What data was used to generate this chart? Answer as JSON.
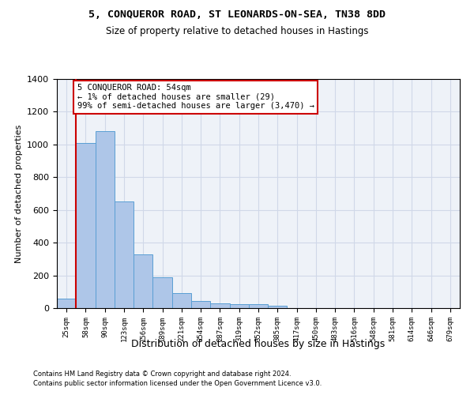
{
  "title1": "5, CONQUEROR ROAD, ST LEONARDS-ON-SEA, TN38 8DD",
  "title2": "Size of property relative to detached houses in Hastings",
  "xlabel": "Distribution of detached houses by size in Hastings",
  "ylabel": "Number of detached properties",
  "categories": [
    "25sqm",
    "58sqm",
    "90sqm",
    "123sqm",
    "156sqm",
    "189sqm",
    "221sqm",
    "254sqm",
    "287sqm",
    "319sqm",
    "352sqm",
    "385sqm",
    "417sqm",
    "450sqm",
    "483sqm",
    "516sqm",
    "548sqm",
    "581sqm",
    "614sqm",
    "646sqm",
    "679sqm"
  ],
  "values": [
    58,
    1010,
    1080,
    650,
    330,
    190,
    90,
    45,
    30,
    25,
    25,
    15,
    0,
    0,
    0,
    0,
    0,
    0,
    0,
    0,
    0
  ],
  "bar_color": "#aec6e8",
  "bar_edge_color": "#5a9fd4",
  "vline_color": "#cc0000",
  "annotation_box_text": "5 CONQUEROR ROAD: 54sqm\n← 1% of detached houses are smaller (29)\n99% of semi-detached houses are larger (3,470) →",
  "annotation_box_color": "#cc0000",
  "ylim": [
    0,
    1400
  ],
  "yticks": [
    0,
    200,
    400,
    600,
    800,
    1000,
    1200,
    1400
  ],
  "grid_color": "#d0d8e8",
  "bg_color": "#eef2f8",
  "footer1": "Contains HM Land Registry data © Crown copyright and database right 2024.",
  "footer2": "Contains public sector information licensed under the Open Government Licence v3.0."
}
